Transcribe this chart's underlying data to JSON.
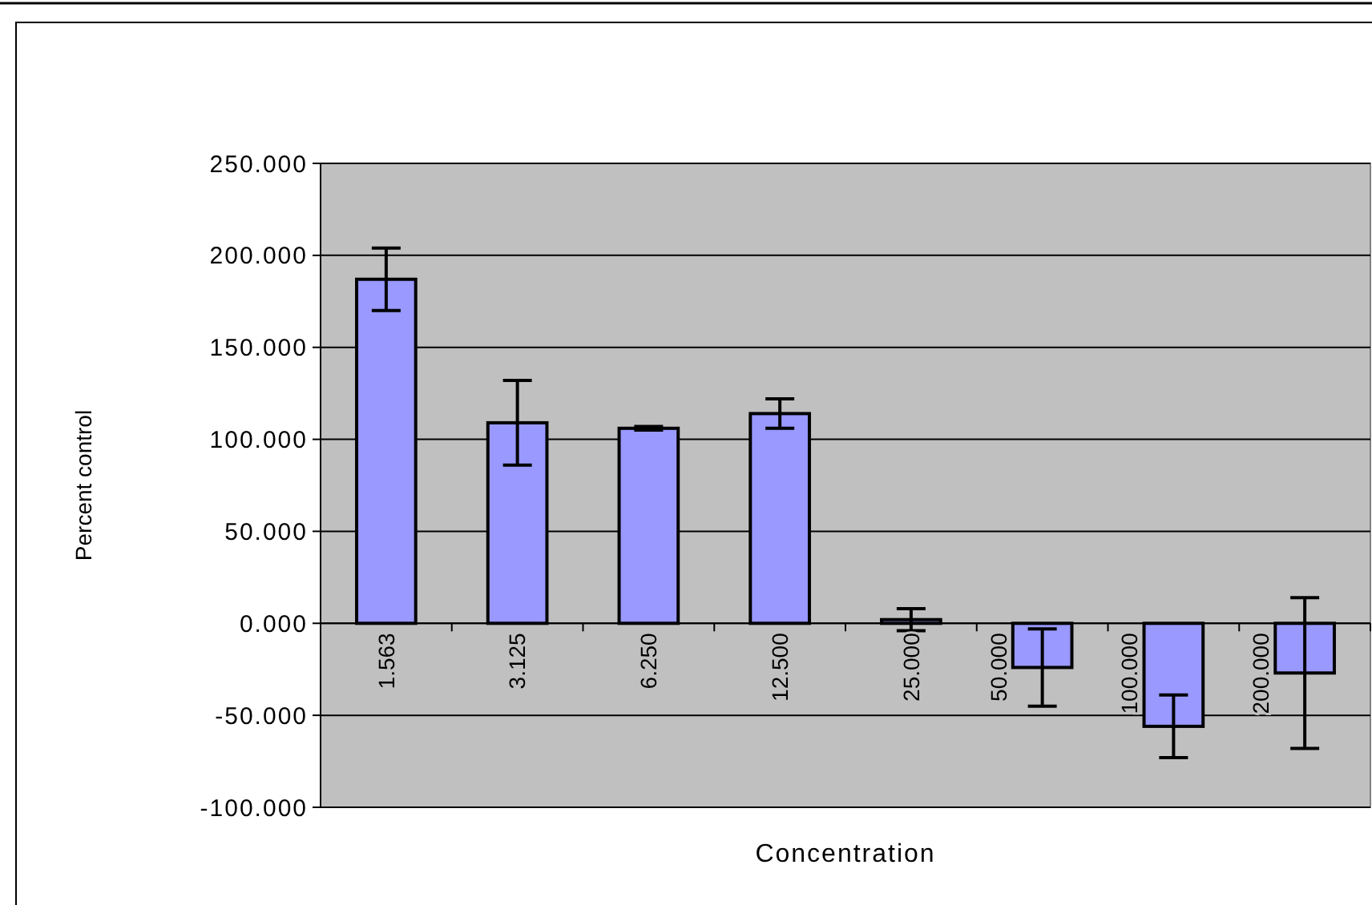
{
  "chart_data": {
    "type": "bar",
    "xlabel": "Concentration",
    "ylabel": "Percent control",
    "categories": [
      "1.563",
      "3.125",
      "6.250",
      "12.500",
      "25.000",
      "50.000",
      "100.000",
      "200.000"
    ],
    "values": [
      187,
      109,
      106,
      114,
      2,
      -24,
      -56,
      -27
    ],
    "errors": [
      17,
      23,
      1,
      8,
      6,
      21,
      17,
      41
    ],
    "color": "#9999ff",
    "ylim": [
      -100,
      250
    ],
    "yticks": [
      {
        "value": -100,
        "label": "-100.000"
      },
      {
        "value": -50,
        "label": "-50.000"
      },
      {
        "value": 0,
        "label": "0.000"
      },
      {
        "value": 50,
        "label": "50.000"
      },
      {
        "value": 100,
        "label": "100.000"
      },
      {
        "value": 150,
        "label": "150.000"
      },
      {
        "value": 200,
        "label": "200.000"
      },
      {
        "value": 250,
        "label": "250.000"
      }
    ],
    "grid": "y"
  }
}
